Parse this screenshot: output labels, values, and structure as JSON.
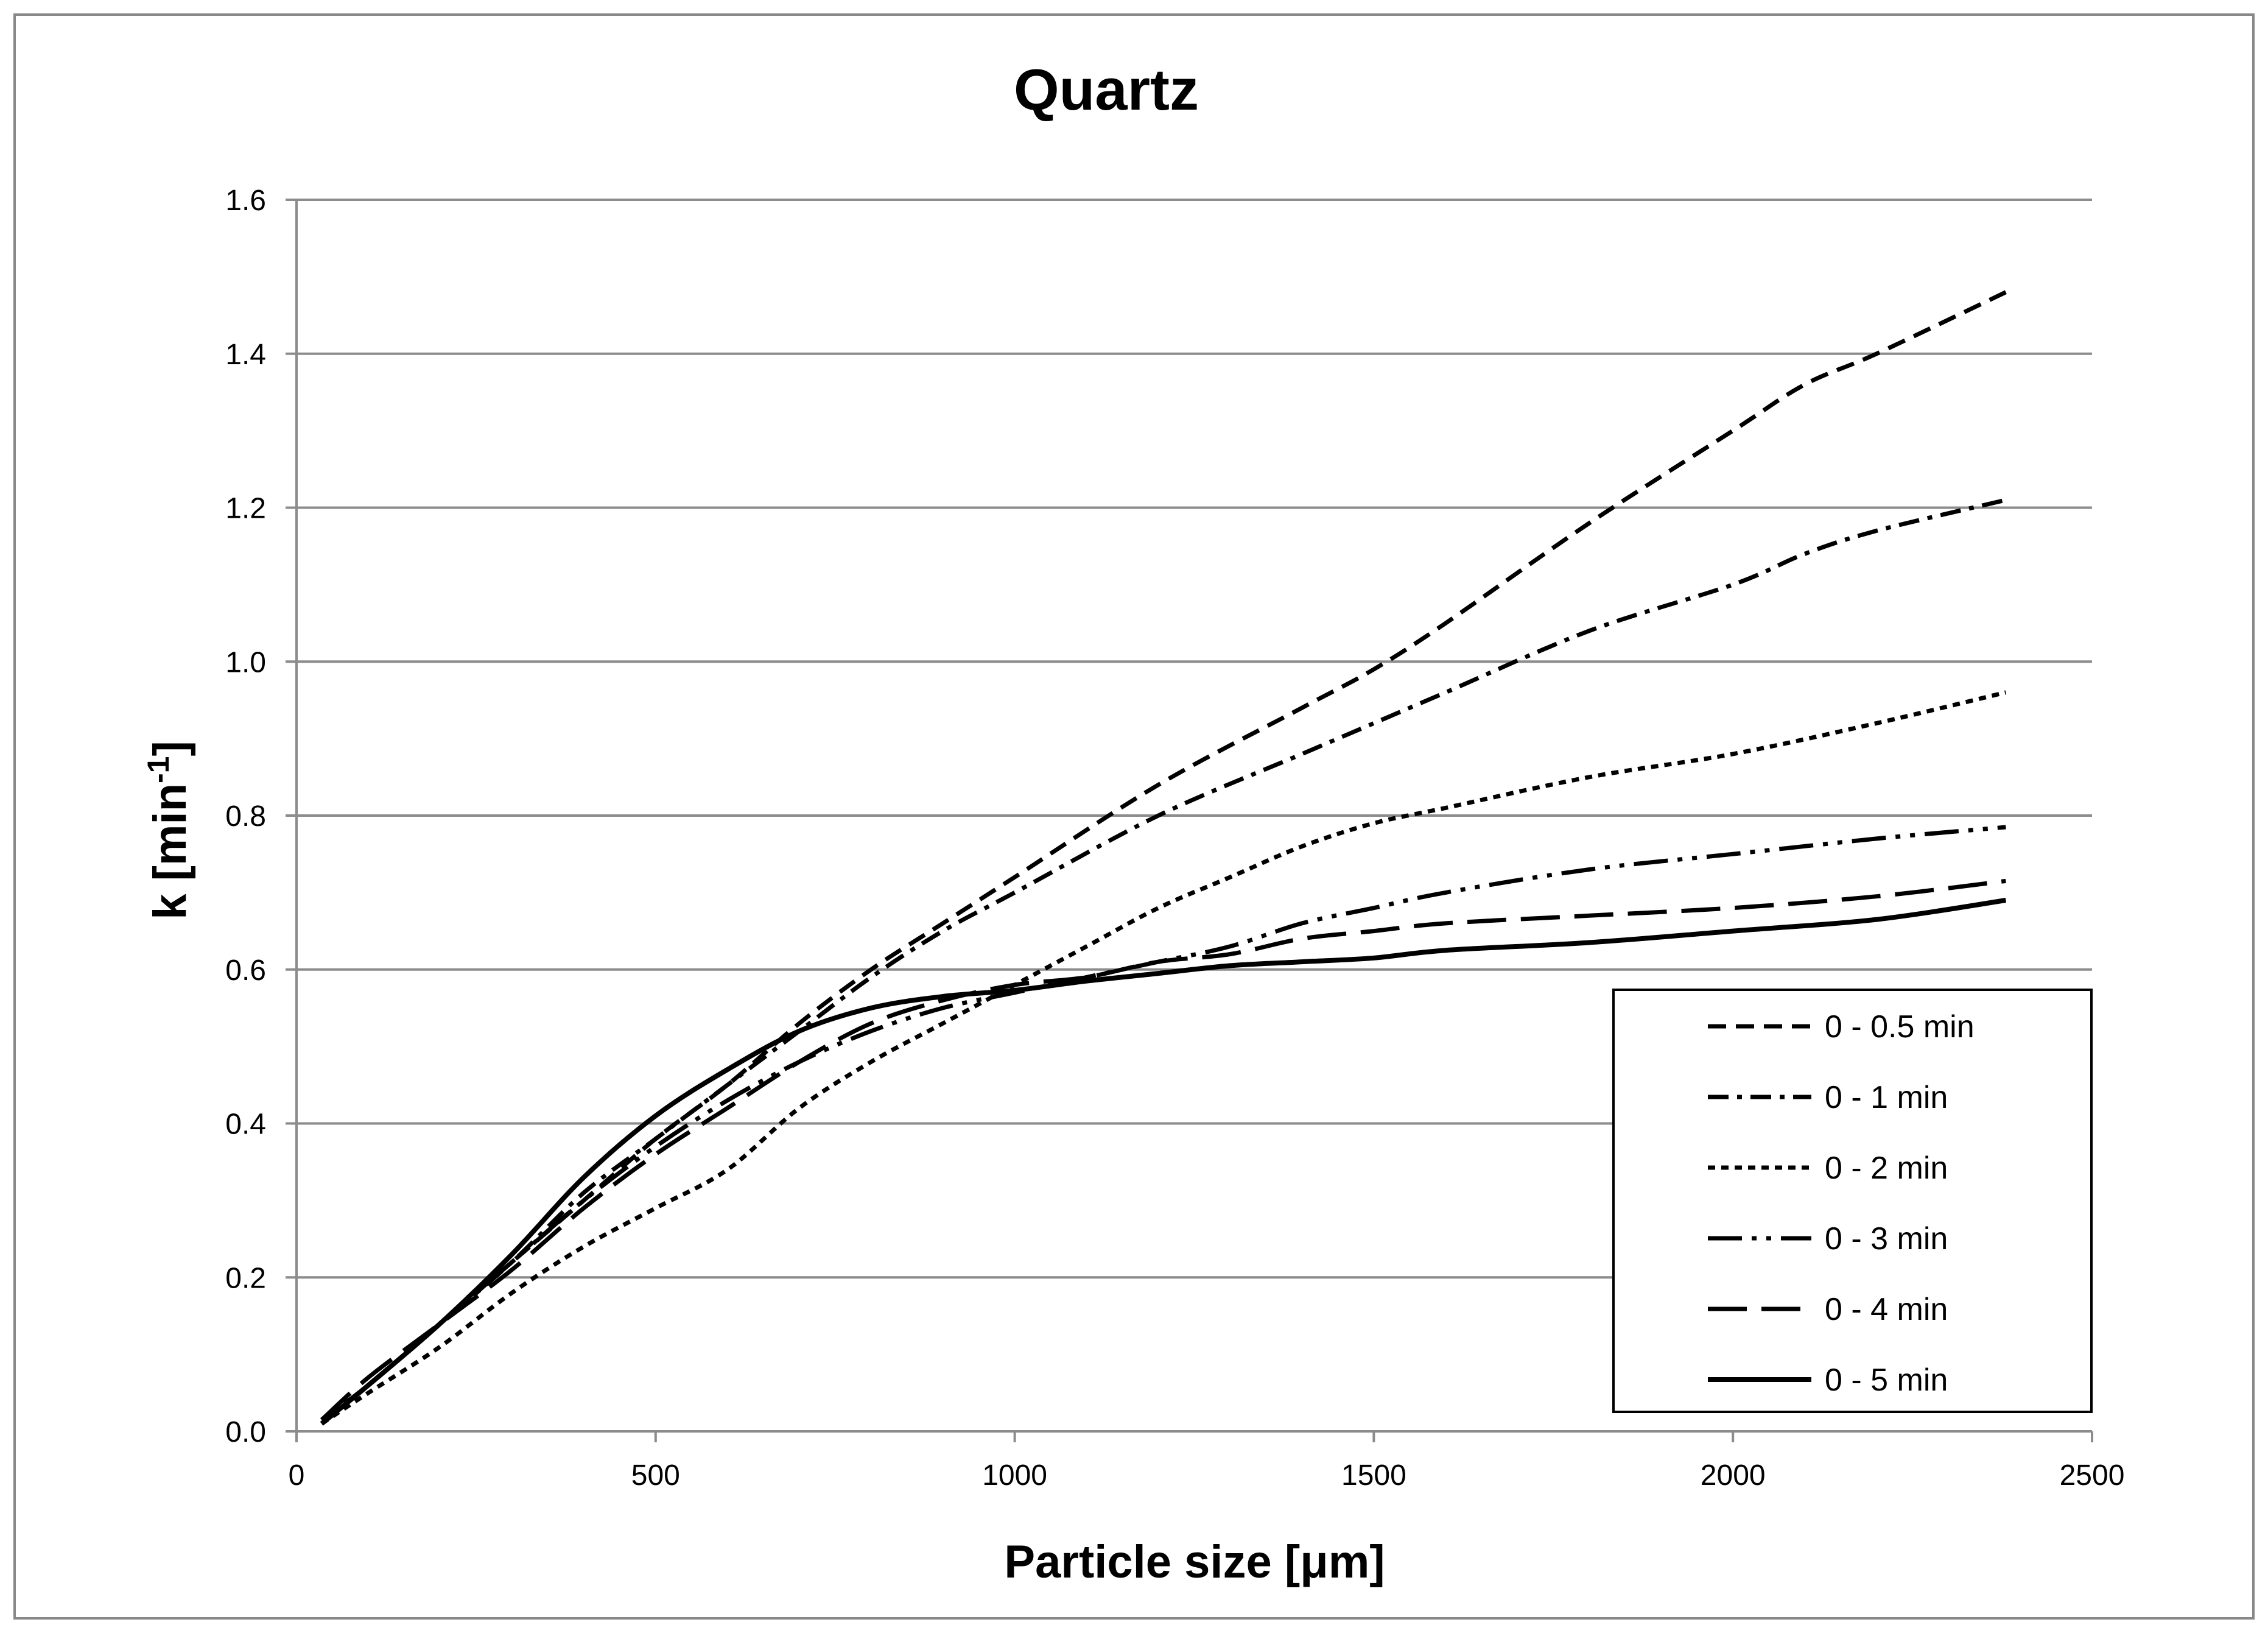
{
  "chart_data": {
    "type": "line",
    "title": "Quartz",
    "xlabel": "Particle size [μm]",
    "ylabel": "k [min",
    "ylabel_superscript": "-1",
    "ylabel_suffix": "]",
    "xlim": [
      0,
      2500
    ],
    "ylim": [
      0,
      1.6
    ],
    "xticks": [
      "0",
      "500",
      "1000",
      "1500",
      "2000",
      "2500"
    ],
    "yticks": [
      "0.0",
      "0.2",
      "0.4",
      "0.6",
      "0.8",
      "1.0",
      "1.2",
      "1.4",
      "1.6"
    ],
    "grid": "horizontal",
    "legend_position": "bottom-right",
    "series": [
      {
        "name": "0 - 0.5 min",
        "style": "dashed",
        "points": [
          [
            35,
            0.015
          ],
          [
            100,
            0.06
          ],
          [
            200,
            0.14
          ],
          [
            300,
            0.22
          ],
          [
            400,
            0.3
          ],
          [
            500,
            0.38
          ],
          [
            600,
            0.45
          ],
          [
            700,
            0.53
          ],
          [
            800,
            0.6
          ],
          [
            900,
            0.66
          ],
          [
            1000,
            0.72
          ],
          [
            1200,
            0.84
          ],
          [
            1400,
            0.94
          ],
          [
            1500,
            0.99
          ],
          [
            1600,
            1.05
          ],
          [
            1800,
            1.18
          ],
          [
            2000,
            1.3
          ],
          [
            2100,
            1.36
          ],
          [
            2200,
            1.4
          ],
          [
            2380,
            1.48
          ]
        ]
      },
      {
        "name": "0 - 1 min",
        "style": "dash-dot",
        "points": [
          [
            35,
            0.015
          ],
          [
            100,
            0.06
          ],
          [
            200,
            0.14
          ],
          [
            300,
            0.22
          ],
          [
            400,
            0.31
          ],
          [
            500,
            0.38
          ],
          [
            600,
            0.45
          ],
          [
            700,
            0.52
          ],
          [
            800,
            0.59
          ],
          [
            900,
            0.65
          ],
          [
            1000,
            0.7
          ],
          [
            1200,
            0.8
          ],
          [
            1400,
            0.88
          ],
          [
            1500,
            0.92
          ],
          [
            1600,
            0.96
          ],
          [
            1800,
            1.04
          ],
          [
            2000,
            1.1
          ],
          [
            2100,
            1.14
          ],
          [
            2200,
            1.17
          ],
          [
            2380,
            1.21
          ]
        ]
      },
      {
        "name": "0 - 2 min",
        "style": "dotted",
        "points": [
          [
            35,
            0.01
          ],
          [
            100,
            0.05
          ],
          [
            200,
            0.11
          ],
          [
            300,
            0.18
          ],
          [
            400,
            0.24
          ],
          [
            500,
            0.29
          ],
          [
            600,
            0.34
          ],
          [
            700,
            0.42
          ],
          [
            800,
            0.48
          ],
          [
            900,
            0.53
          ],
          [
            1000,
            0.58
          ],
          [
            1100,
            0.63
          ],
          [
            1200,
            0.68
          ],
          [
            1300,
            0.72
          ],
          [
            1400,
            0.76
          ],
          [
            1500,
            0.79
          ],
          [
            1600,
            0.81
          ],
          [
            1800,
            0.85
          ],
          [
            2000,
            0.88
          ],
          [
            2200,
            0.92
          ],
          [
            2380,
            0.96
          ]
        ]
      },
      {
        "name": "0 - 3 min",
        "style": "dash-dot-dot",
        "points": [
          [
            35,
            0.01
          ],
          [
            100,
            0.06
          ],
          [
            200,
            0.14
          ],
          [
            300,
            0.22
          ],
          [
            400,
            0.3
          ],
          [
            500,
            0.37
          ],
          [
            600,
            0.43
          ],
          [
            700,
            0.48
          ],
          [
            800,
            0.52
          ],
          [
            900,
            0.55
          ],
          [
            1000,
            0.57
          ],
          [
            1100,
            0.59
          ],
          [
            1200,
            0.61
          ],
          [
            1300,
            0.63
          ],
          [
            1400,
            0.66
          ],
          [
            1500,
            0.68
          ],
          [
            1600,
            0.7
          ],
          [
            1800,
            0.73
          ],
          [
            2000,
            0.75
          ],
          [
            2200,
            0.77
          ],
          [
            2380,
            0.785
          ]
        ]
      },
      {
        "name": "0 - 4 min",
        "style": "long-dash",
        "points": [
          [
            35,
            0.015
          ],
          [
            100,
            0.07
          ],
          [
            200,
            0.14
          ],
          [
            300,
            0.21
          ],
          [
            400,
            0.29
          ],
          [
            500,
            0.36
          ],
          [
            600,
            0.42
          ],
          [
            700,
            0.48
          ],
          [
            800,
            0.53
          ],
          [
            900,
            0.56
          ],
          [
            1000,
            0.58
          ],
          [
            1100,
            0.59
          ],
          [
            1200,
            0.61
          ],
          [
            1300,
            0.62
          ],
          [
            1400,
            0.64
          ],
          [
            1500,
            0.65
          ],
          [
            1600,
            0.66
          ],
          [
            1800,
            0.67
          ],
          [
            2000,
            0.68
          ],
          [
            2200,
            0.695
          ],
          [
            2380,
            0.715
          ]
        ]
      },
      {
        "name": "0 - 5 min",
        "style": "solid",
        "points": [
          [
            35,
            0.01
          ],
          [
            100,
            0.06
          ],
          [
            200,
            0.14
          ],
          [
            300,
            0.23
          ],
          [
            400,
            0.33
          ],
          [
            500,
            0.41
          ],
          [
            600,
            0.47
          ],
          [
            700,
            0.52
          ],
          [
            800,
            0.55
          ],
          [
            900,
            0.565
          ],
          [
            1000,
            0.573
          ],
          [
            1100,
            0.585
          ],
          [
            1200,
            0.595
          ],
          [
            1300,
            0.605
          ],
          [
            1400,
            0.61
          ],
          [
            1500,
            0.615
          ],
          [
            1600,
            0.625
          ],
          [
            1800,
            0.635
          ],
          [
            2000,
            0.65
          ],
          [
            2200,
            0.665
          ],
          [
            2380,
            0.69
          ]
        ]
      }
    ]
  }
}
